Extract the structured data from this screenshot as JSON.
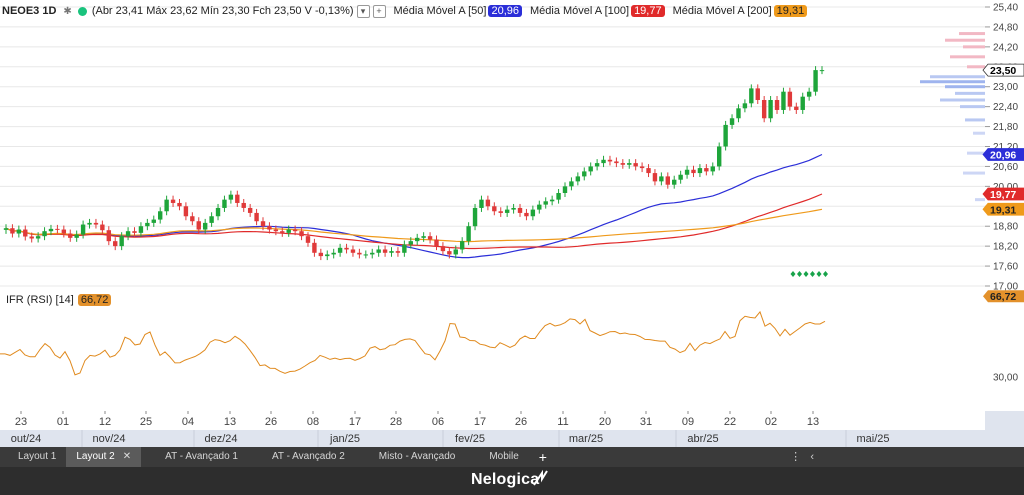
{
  "legend": {
    "ticker": "NEOE3 1D",
    "ohlc_text": "(Abr 23,41 Máx 23,62 Mín 23,30 Fch 23,50 V -0,13%)",
    "ma": [
      {
        "label": "Média Móvel A [50]",
        "value": "20,96",
        "color": "#2b2ed8"
      },
      {
        "label": "Média Móvel A [100]",
        "value": "19,77",
        "color": "#e02a2a"
      },
      {
        "label": "Média Móvel A [200]",
        "value": "19,31",
        "color": "#ef9a1b"
      }
    ]
  },
  "rsi_legend": {
    "label": "IFR (RSI) [14]",
    "value": "66,72"
  },
  "price_axis": {
    "ticks": [
      "25,40",
      "24,80",
      "24,20",
      "23,60",
      "23,00",
      "22,40",
      "21,80",
      "21,20",
      "20,60",
      "20,00",
      "19,40",
      "18,80",
      "18,20",
      "17,60",
      "17,00"
    ],
    "badges": [
      {
        "value": "23,50",
        "color": "#ffffff",
        "text": "#000000"
      },
      {
        "value": "20,96",
        "color": "#2b2ed8",
        "text": "#ffffff"
      },
      {
        "value": "19,77",
        "color": "#e02a2a",
        "text": "#ffffff"
      },
      {
        "value": "19,31",
        "color": "#ef9a1b",
        "text": "#222222"
      }
    ]
  },
  "rsi_axis": {
    "tick": "30,00",
    "badge": "66,72"
  },
  "x_axis": {
    "days": [
      "23",
      "01",
      "12",
      "25",
      "04",
      "13",
      "26",
      "08",
      "17",
      "28",
      "06",
      "17",
      "26",
      "11",
      "20",
      "31",
      "09",
      "22",
      "02",
      "13"
    ],
    "months": [
      "out/24",
      "nov/24",
      "dez/24",
      "jan/25",
      "fev/25",
      "mar/25",
      "abr/25",
      "mai/25"
    ]
  },
  "chart_data": {
    "type": "candlestick",
    "candle_close": [
      18.74,
      18.58,
      18.7,
      18.49,
      18.43,
      18.5,
      18.65,
      18.72,
      18.7,
      18.58,
      18.45,
      18.55,
      18.85,
      18.9,
      18.85,
      18.68,
      18.35,
      18.2,
      18.5,
      18.65,
      18.6,
      18.8,
      18.9,
      19.0,
      19.25,
      19.6,
      19.5,
      19.4,
      19.1,
      18.95,
      18.7,
      18.9,
      19.1,
      19.35,
      19.6,
      19.75,
      19.5,
      19.35,
      19.2,
      18.95,
      18.8,
      18.7,
      18.65,
      18.6,
      18.7,
      18.65,
      18.5,
      18.3,
      18.0,
      17.9,
      17.95,
      18.0,
      18.15,
      18.1,
      18.0,
      17.95,
      17.95,
      18.0,
      18.1,
      18.0,
      18.05,
      18.0,
      18.25,
      18.35,
      18.45,
      18.5,
      18.4,
      18.2,
      18.05,
      17.95,
      18.1,
      18.35,
      18.8,
      19.35,
      19.6,
      19.4,
      19.25,
      19.2,
      19.3,
      19.35,
      19.2,
      19.1,
      19.3,
      19.45,
      19.55,
      19.6,
      19.8,
      20.0,
      20.15,
      20.3,
      20.45,
      20.6,
      20.7,
      20.8,
      20.75,
      20.7,
      20.65,
      20.7,
      20.6,
      20.55,
      20.4,
      20.15,
      20.3,
      20.05,
      20.2,
      20.35,
      20.5,
      20.4,
      20.55,
      20.45,
      20.6,
      21.2,
      21.85,
      22.05,
      22.35,
      22.5,
      22.95,
      22.6,
      22.05,
      22.6,
      22.3,
      22.85,
      22.4,
      22.3,
      22.7,
      22.85,
      23.5,
      23.5
    ],
    "ma_values": {
      "ma50": 20.96,
      "ma100": 19.77,
      "ma200": 19.31
    },
    "rsi": [
      40.5,
      40.5,
      39.8,
      41.2,
      42.5,
      40,
      39.2,
      39.2,
      42.5,
      45.2,
      43.5,
      40,
      38.6,
      41.5,
      37.4,
      31,
      31.8,
      37.5,
      39.8,
      39.5,
      40.5,
      42.2,
      39,
      39.8,
      42.3,
      48.1,
      47.1,
      44.6,
      45,
      49.3,
      50.5,
      44.5,
      39.8,
      41.4,
      39.1,
      36.4,
      36.5,
      37.7,
      38.5,
      39.3,
      40.6,
      42.3,
      45.8,
      47,
      46.6,
      45.6,
      46.5,
      48.5,
      47.1,
      45,
      42.1,
      38.9,
      35.2,
      35.5,
      34,
      33.9,
      32.6,
      31.7,
      32.5,
      32.7,
      33.6,
      35,
      36.5,
      37.5,
      39.8,
      39,
      38,
      38.6,
      37.9,
      38.4,
      38.5,
      37.6,
      38.4,
      39.6,
      43.1,
      43.8,
      42.4,
      42.8,
      44.4,
      44.7,
      46.3,
      47.1,
      47.3,
      46.6,
      43.5,
      40.6,
      40.1,
      37.8,
      41.8,
      46.4,
      54.3,
      54.1,
      48.2,
      47.9,
      46.6,
      46.5,
      44.9,
      44.5,
      43.6,
      43.3,
      45.6,
      44.6,
      43.4,
      44.5,
      47.3,
      48.7,
      47.5,
      47.5,
      50.7,
      53.3,
      54.4,
      53.2,
      53.7,
      54.7,
      56.4,
      56.1,
      54.1,
      56.2,
      51.1,
      50,
      48.8,
      49.6,
      50.6,
      50.7,
      49.7,
      50,
      49.4,
      49.3,
      48.4,
      47.1,
      47,
      46.6,
      46.3,
      46.3,
      43.5,
      42.7,
      41.1,
      42,
      45.3,
      42,
      44.5,
      45.7,
      45.2,
      46.3,
      47.3,
      50.7,
      47.6,
      48.4,
      55.6,
      57.6,
      57.1,
      56.8,
      59.6,
      53.1,
      54.4,
      52.1,
      48.7,
      51.7,
      49,
      50.7,
      52.3,
      54.1,
      54.8,
      54.1,
      54.1,
      55.3
    ]
  }
}
